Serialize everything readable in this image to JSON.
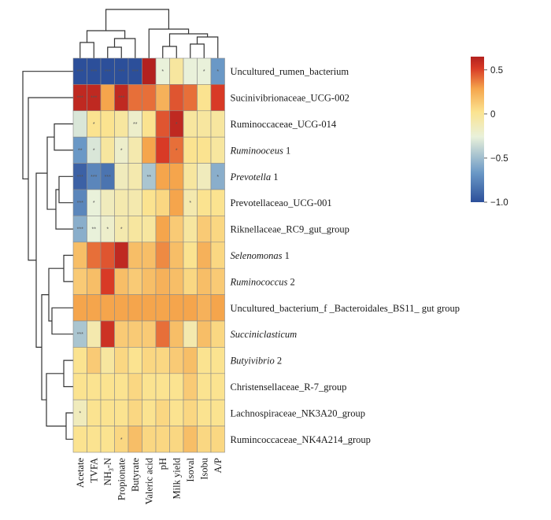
{
  "chart_data": {
    "type": "heatmap",
    "columns": [
      "Acetate",
      "TVFA",
      "NH3-N",
      "Propionate",
      "Butyrate",
      "Valeric acid",
      "pH",
      "Milk yield",
      "Isoval",
      "Isobu",
      "A/P"
    ],
    "rows": [
      {
        "name": "Uncultured_rumen_bacterium",
        "italic": false
      },
      {
        "name": "Sucinivibrionaceae_UCG-002",
        "italic": false
      },
      {
        "name": "Ruminoccaceae_UCG-014",
        "italic": false
      },
      {
        "name": "Ruminooceus",
        "suffix": " 1",
        "italic": true
      },
      {
        "name": "Prevotella",
        "suffix": " 1",
        "italic": true
      },
      {
        "name": "Prevotellaceao_UCG-001",
        "italic": false
      },
      {
        "name": "Riknellaceae_RC9_gut_group",
        "italic": false
      },
      {
        "name": "Selenomonas",
        "suffix": " 1",
        "italic": true
      },
      {
        "name": "Ruminococcus",
        "suffix": " 2",
        "italic": true
      },
      {
        "name": "Uncultured_bacterium_f _Bacteroidales_BS11_ gut group",
        "italic": false
      },
      {
        "name": "Succiniclasticum",
        "italic": true
      },
      {
        "name": "Butyivibrio",
        "suffix": " 2",
        "italic": true
      },
      {
        "name": "Christensellaceae_R-7_group",
        "italic": false
      },
      {
        "name": "Lachnospiraceae_NK3A20_group",
        "italic": false
      },
      {
        "name": "Rumincoccaceae_NK4A214_group",
        "italic": false
      }
    ],
    "values": [
      [
        -1.0,
        -1.0,
        -1.0,
        -1.0,
        -1.0,
        0.65,
        -0.2,
        0.0,
        -0.2,
        -0.2,
        -0.6
      ],
      [
        0.6,
        0.6,
        0.3,
        0.6,
        0.4,
        0.4,
        0.25,
        0.45,
        0.4,
        0.05,
        0.5
      ],
      [
        -0.25,
        0.05,
        0.05,
        0.0,
        -0.15,
        0.05,
        0.45,
        0.6,
        0.0,
        0.0,
        0.0
      ],
      [
        -0.6,
        -0.25,
        0.0,
        -0.15,
        -0.05,
        0.3,
        0.5,
        0.4,
        0.05,
        0.05,
        0.0
      ],
      [
        -0.9,
        -0.7,
        -0.8,
        -0.1,
        -0.05,
        -0.4,
        0.3,
        0.3,
        0.0,
        -0.1,
        -0.5
      ],
      [
        -0.7,
        -0.2,
        -0.1,
        -0.05,
        -0.05,
        0.05,
        0.1,
        0.3,
        -0.05,
        0.05,
        0.05
      ],
      [
        -0.5,
        -0.2,
        -0.15,
        -0.05,
        0.0,
        0.0,
        0.3,
        0.15,
        0.0,
        0.15,
        0.1
      ],
      [
        0.2,
        0.4,
        0.45,
        0.6,
        0.2,
        0.2,
        0.35,
        0.2,
        0.05,
        0.25,
        0.1
      ],
      [
        0.15,
        0.2,
        0.5,
        0.2,
        0.15,
        0.2,
        0.25,
        0.2,
        0.1,
        0.2,
        0.15
      ],
      [
        0.3,
        0.3,
        0.3,
        0.3,
        0.3,
        0.3,
        0.3,
        0.3,
        0.3,
        0.25,
        0.3
      ],
      [
        -0.4,
        -0.05,
        0.55,
        0.15,
        0.15,
        0.15,
        0.4,
        0.2,
        -0.05,
        0.2,
        0.1
      ],
      [
        0.05,
        0.15,
        0.0,
        0.1,
        0.05,
        0.1,
        0.1,
        0.15,
        0.2,
        0.05,
        0.05
      ],
      [
        0.05,
        0.05,
        0.05,
        0.05,
        0.1,
        0.05,
        0.05,
        0.05,
        0.15,
        0.05,
        0.05
      ],
      [
        -0.1,
        0.05,
        0.05,
        0.05,
        0.1,
        0.05,
        0.1,
        0.05,
        0.1,
        0.05,
        0.05
      ],
      [
        0.05,
        0.05,
        0.05,
        0.1,
        0.2,
        0.1,
        0.1,
        0.1,
        0.2,
        0.1,
        0.1
      ]
    ],
    "significance": [
      [
        "***",
        "***",
        "***",
        "***",
        "***",
        "",
        "*",
        "",
        "",
        "*",
        "*"
      ],
      [
        "***",
        "***",
        "",
        "***",
        "",
        "",
        "",
        "",
        "",
        "",
        ""
      ],
      [
        "",
        "*",
        "",
        "",
        "**",
        "",
        "",
        "*",
        "",
        "",
        ""
      ],
      [
        "**",
        "*",
        "",
        "*",
        "",
        "",
        "",
        "*",
        "",
        "",
        ""
      ],
      [
        "***",
        "***",
        "***",
        "",
        "",
        "**",
        "",
        "",
        "",
        "",
        "*"
      ],
      [
        "***",
        "*",
        "",
        "",
        "",
        "",
        "",
        "",
        "*",
        "",
        ""
      ],
      [
        "***",
        "**",
        "*",
        "*",
        "",
        "",
        "",
        "",
        "",
        "",
        ""
      ],
      [
        "",
        "",
        "",
        "",
        "",
        "",
        "",
        "",
        "",
        "",
        ""
      ],
      [
        "",
        "",
        "",
        "",
        "",
        "",
        "",
        "",
        "",
        "",
        ""
      ],
      [
        "",
        "",
        "",
        "",
        "",
        "",
        "",
        "",
        "",
        "",
        ""
      ],
      [
        "***",
        "",
        "",
        "",
        "",
        "",
        "",
        "",
        "",
        "",
        ""
      ],
      [
        "",
        "",
        "",
        "",
        "",
        "",
        "",
        "",
        "",
        "",
        ""
      ],
      [
        "",
        "",
        "",
        "",
        "",
        "",
        "",
        "",
        "",
        "",
        ""
      ],
      [
        "*",
        "",
        "",
        "",
        "",
        "",
        "",
        "",
        "",
        "",
        ""
      ],
      [
        "",
        "",
        "",
        "*",
        "",
        "",
        "",
        "",
        "",
        "",
        ""
      ]
    ],
    "colorbar": {
      "ticks": [
        "0.5",
        "0",
        "−0.5",
        "−1.0"
      ],
      "range": [
        -1.0,
        0.65
      ],
      "colors": [
        "#2c4f9a",
        "#6a98c6",
        "#e9f1da",
        "#fbe390",
        "#f5a54c",
        "#d83a26",
        "#b3211f"
      ]
    },
    "row_dendrogram": true,
    "column_dendrogram": true
  }
}
